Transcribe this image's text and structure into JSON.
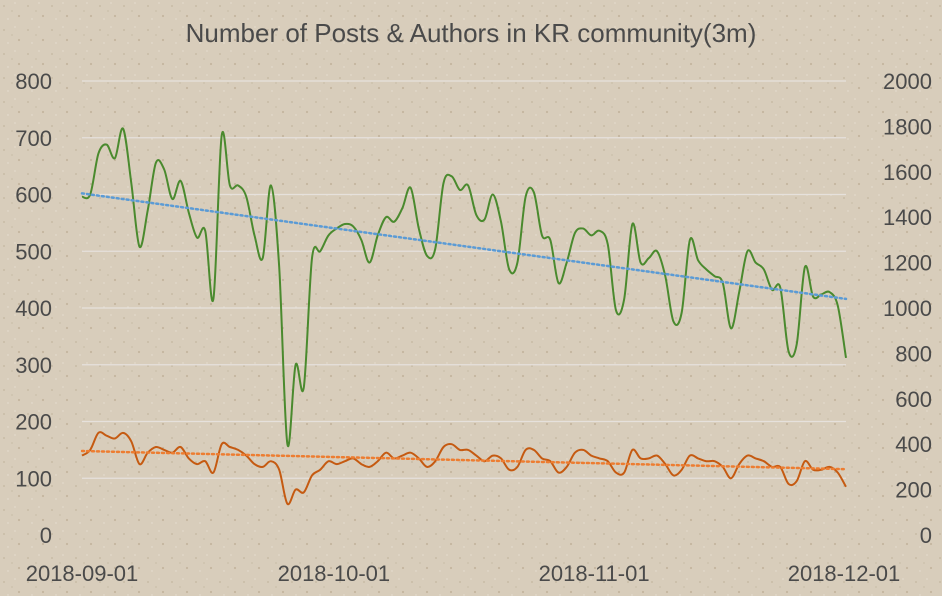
{
  "chart_data": {
    "type": "line",
    "title": "Number of Posts & Authors in KR community(3m)",
    "xlabel": "",
    "ylabel_left": "",
    "ylabel_right": "",
    "ylim_left": [
      0,
      800
    ],
    "ylim_right": [
      0,
      2000
    ],
    "yticks_left": [
      "0",
      "100",
      "200",
      "300",
      "400",
      "500",
      "600",
      "700",
      "800"
    ],
    "yticks_right": [
      "0",
      "200",
      "400",
      "600",
      "800",
      "1000",
      "1200",
      "1400",
      "1600",
      "1800",
      "2000"
    ],
    "x_tick_labels": [
      "2018-09-01",
      "2018-10-01",
      "2018-11-01",
      "2018-12-01"
    ],
    "x_start": "2018-09-01",
    "x_end": "2018-12-01",
    "grid": true,
    "legend": "none",
    "series": [
      {
        "axis": "right",
        "color": "#4a8a2e",
        "trendline": {
          "color": "#5b9bd5",
          "start": 1505,
          "end": 1040
        },
        "values": [
          1490,
          1500,
          1680,
          1720,
          1660,
          1790,
          1550,
          1270,
          1430,
          1640,
          1610,
          1480,
          1560,
          1420,
          1310,
          1340,
          1040,
          1760,
          1540,
          1540,
          1490,
          1320,
          1220,
          1540,
          1180,
          400,
          750,
          650,
          1220,
          1250,
          1320,
          1350,
          1370,
          1360,
          1300,
          1200,
          1320,
          1400,
          1380,
          1440,
          1530,
          1350,
          1230,
          1260,
          1550,
          1580,
          1520,
          1540,
          1410,
          1390,
          1500,
          1380,
          1170,
          1200,
          1490,
          1510,
          1320,
          1300,
          1110,
          1200,
          1330,
          1350,
          1320,
          1340,
          1280,
          990,
          1040,
          1370,
          1200,
          1220,
          1250,
          1140,
          940,
          980,
          1300,
          1210,
          1170,
          1140,
          1110,
          910,
          1070,
          1250,
          1200,
          1170,
          1080,
          1090,
          810,
          840,
          1180,
          1050,
          1060,
          1070,
          1010,
          780
        ]
      },
      {
        "axis": "left",
        "color": "#c55a11",
        "trendline": {
          "color": "#ed7d31",
          "start": 148,
          "end": 116
        },
        "values": [
          140,
          150,
          180,
          175,
          170,
          180,
          165,
          125,
          145,
          155,
          150,
          145,
          155,
          135,
          125,
          130,
          110,
          160,
          155,
          150,
          140,
          125,
          120,
          130,
          115,
          55,
          80,
          75,
          105,
          115,
          130,
          125,
          130,
          135,
          125,
          120,
          130,
          145,
          135,
          140,
          145,
          135,
          120,
          130,
          155,
          160,
          150,
          150,
          140,
          130,
          140,
          135,
          115,
          120,
          150,
          150,
          135,
          130,
          110,
          120,
          145,
          150,
          140,
          135,
          130,
          110,
          110,
          150,
          135,
          135,
          140,
          125,
          105,
          115,
          140,
          135,
          130,
          130,
          120,
          100,
          125,
          140,
          135,
          130,
          120,
          120,
          90,
          95,
          130,
          115,
          115,
          120,
          110,
          85
        ]
      }
    ]
  }
}
